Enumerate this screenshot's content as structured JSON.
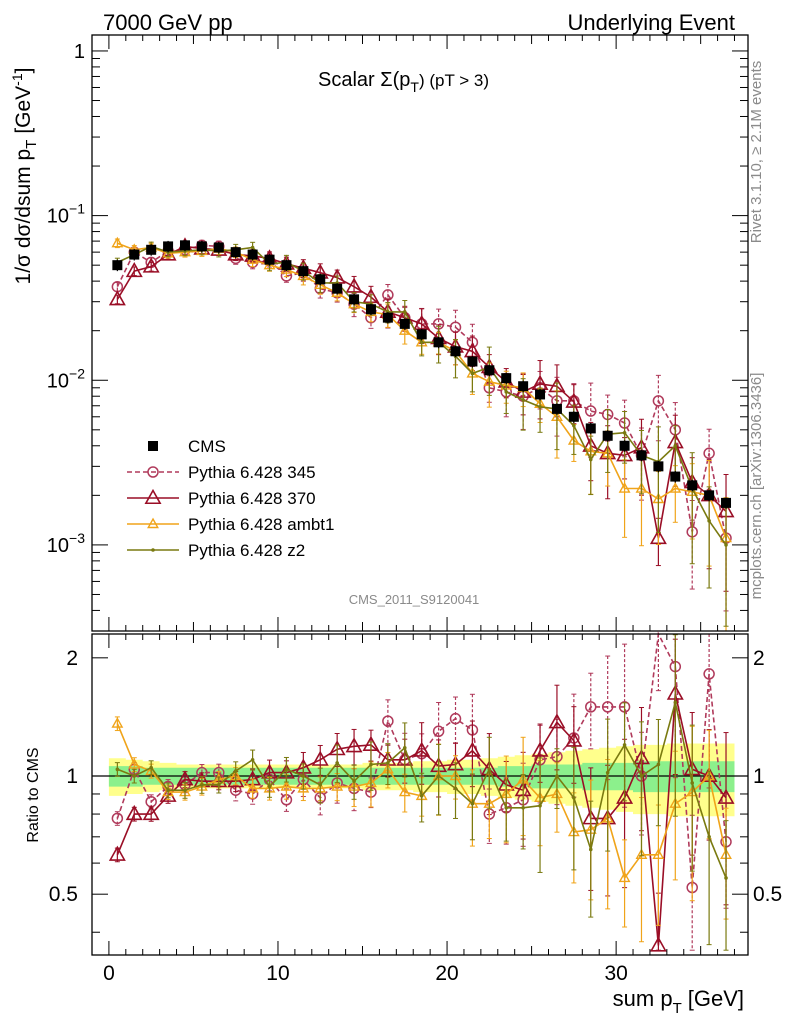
{
  "header": {
    "left": "7000 GeV pp",
    "right": "Underlying Event",
    "plot_title": "Scalar Σ(p",
    "plot_title_sub": "T",
    "plot_title_end": ") (pT > 3)",
    "analysis_id": "CMS_2011_S9120041",
    "side_top": "Rivet 3.1.10, ≥ 2.1M events",
    "side_bottom": "mcplots.cern.ch [arXiv:1306.3436]"
  },
  "chart_data": [
    {
      "type": "scatter",
      "panel": "main",
      "ylabel": "1/σ dσ/dsum p",
      "ylabel_sub": "T",
      "ylabel_unit": "[GeV",
      "ylabel_unit_sup": "-1",
      "ylabel_end": "]",
      "yscale": "log",
      "xlim": [
        -1,
        37.8
      ],
      "ylim": [
        0.0003,
        1.25
      ],
      "y_ticks": [
        "1",
        "10^-1",
        "10^-2",
        "10^-3"
      ],
      "y_tick_values": [
        1,
        0.1,
        0.01,
        0.001
      ],
      "x": [
        0.5,
        1.5,
        2.5,
        3.5,
        4.5,
        5.5,
        6.5,
        7.5,
        8.5,
        9.5,
        10.5,
        11.5,
        12.5,
        13.5,
        14.5,
        15.5,
        16.5,
        17.5,
        18.5,
        19.5,
        20.5,
        21.5,
        22.5,
        23.5,
        24.5,
        25.5,
        26.5,
        27.5,
        28.5,
        29.5,
        30.5,
        31.5,
        32.5,
        33.5,
        34.5,
        35.5,
        36.5
      ],
      "series": [
        {
          "name": "CMS",
          "color": "#000000",
          "marker": "square",
          "values": [
            0.05,
            0.058,
            0.062,
            0.065,
            0.066,
            0.065,
            0.064,
            0.06,
            0.058,
            0.054,
            0.05,
            0.046,
            0.041,
            0.036,
            0.031,
            0.027,
            0.024,
            0.022,
            0.019,
            0.017,
            0.015,
            0.013,
            0.0115,
            0.0103,
            0.0092,
            0.0082,
            0.0067,
            0.006,
            0.0051,
            0.0046,
            0.004,
            0.0035,
            0.003,
            0.0026,
            0.0023,
            0.002,
            0.0018
          ]
        },
        {
          "name": "Pythia 6.428 345",
          "color": "#b03a5b",
          "marker": "open-circle",
          "dash": true,
          "values": [
            0.037,
            0.06,
            0.052,
            0.061,
            0.062,
            0.066,
            0.065,
            0.055,
            0.052,
            0.053,
            0.043,
            0.045,
            0.036,
            0.034,
            0.029,
            0.024,
            0.033,
            0.024,
            0.022,
            0.022,
            0.021,
            0.017,
            0.009,
            0.0085,
            0.008,
            0.009,
            0.0075,
            0.0075,
            0.0065,
            0.0062,
            0.0055,
            0.0035,
            0.0075,
            0.005,
            0.0012,
            0.0036,
            0.0011
          ]
        },
        {
          "name": "Pythia 6.428 370",
          "color": "#9a0e26",
          "marker": "open-triangle",
          "values": [
            0.031,
            0.046,
            0.049,
            0.058,
            0.065,
            0.063,
            0.062,
            0.058,
            0.057,
            0.055,
            0.051,
            0.048,
            0.045,
            0.042,
            0.037,
            0.032,
            0.026,
            0.024,
            0.022,
            0.018,
            0.016,
            0.015,
            0.012,
            0.0098,
            0.0085,
            0.0095,
            0.0092,
            0.0074,
            0.004,
            0.0036,
            0.0035,
            0.0039,
            0.0011,
            0.0042,
            0.0024,
            0.002,
            0.0016
          ]
        },
        {
          "name": "Pythia 6.428 ambt1",
          "color": "#f0a41a",
          "marker": "open-triangle-small",
          "values": [
            0.068,
            0.062,
            0.064,
            0.059,
            0.06,
            0.061,
            0.063,
            0.06,
            0.054,
            0.05,
            0.047,
            0.043,
            0.038,
            0.034,
            0.029,
            0.026,
            0.025,
            0.02,
            0.017,
            0.017,
            0.015,
            0.011,
            0.0098,
            0.0093,
            0.009,
            0.0072,
            0.006,
            0.0043,
            0.0037,
            0.0036,
            0.0022,
            0.0022,
            0.0019,
            0.0022,
            0.0021,
            0.002,
            0.0011
          ]
        },
        {
          "name": "Pythia 6.428 z2",
          "color": "#7a7a10",
          "marker": "dot",
          "values": [
            0.052,
            0.058,
            0.065,
            0.06,
            0.061,
            0.062,
            0.061,
            0.062,
            0.064,
            0.051,
            0.052,
            0.046,
            0.039,
            0.039,
            0.03,
            0.029,
            0.026,
            0.026,
            0.017,
            0.017,
            0.014,
            0.011,
            0.012,
            0.0085,
            0.0076,
            0.0069,
            0.0067,
            0.0053,
            0.0033,
            0.0047,
            0.0048,
            0.0035,
            0.0032,
            0.004,
            0.0022,
            0.0014,
            0.001
          ]
        }
      ]
    },
    {
      "type": "line",
      "panel": "ratio",
      "xlabel": "sum p",
      "xlabel_sub": "T",
      "xlabel_unit": "[GeV]",
      "ylabel": "Ratio to CMS",
      "xlim": [
        -1,
        37.8
      ],
      "ylim": [
        0.35,
        2.3
      ],
      "y_ticks": [
        "0.5",
        "1",
        "2"
      ],
      "y_tick_values": [
        0.5,
        1,
        2
      ],
      "x_ticks": [
        "0",
        "10",
        "20",
        "30"
      ],
      "x_tick_values": [
        0,
        10,
        20,
        30
      ],
      "x": [
        0.5,
        1.5,
        2.5,
        3.5,
        4.5,
        5.5,
        6.5,
        7.5,
        8.5,
        9.5,
        10.5,
        11.5,
        12.5,
        13.5,
        14.5,
        15.5,
        16.5,
        17.5,
        18.5,
        19.5,
        20.5,
        21.5,
        22.5,
        23.5,
        24.5,
        25.5,
        26.5,
        27.5,
        28.5,
        29.5,
        30.5,
        31.5,
        32.5,
        33.5,
        34.5,
        35.5,
        36.5
      ],
      "band_inner": [
        0.06,
        0.06,
        0.05,
        0.05,
        0.05,
        0.05,
        0.05,
        0.05,
        0.05,
        0.05,
        0.05,
        0.05,
        0.05,
        0.05,
        0.05,
        0.05,
        0.05,
        0.05,
        0.05,
        0.05,
        0.05,
        0.05,
        0.05,
        0.06,
        0.06,
        0.07,
        0.07,
        0.07,
        0.08,
        0.08,
        0.08,
        0.09,
        0.09,
        0.09,
        0.09,
        0.09,
        0.09
      ],
      "band_outer": [
        0.11,
        0.1,
        0.09,
        0.08,
        0.07,
        0.07,
        0.07,
        0.07,
        0.07,
        0.07,
        0.07,
        0.07,
        0.07,
        0.07,
        0.07,
        0.08,
        0.08,
        0.08,
        0.09,
        0.09,
        0.1,
        0.1,
        0.11,
        0.12,
        0.13,
        0.14,
        0.15,
        0.16,
        0.17,
        0.18,
        0.19,
        0.2,
        0.2,
        0.21,
        0.21,
        0.21,
        0.21
      ],
      "series": [
        {
          "name": "Pythia 6.428 345",
          "color": "#b03a5b",
          "marker": "open-circle",
          "dash": true,
          "values": [
            0.78,
            1.04,
            0.86,
            0.94,
            0.95,
            1.02,
            1.02,
            0.92,
            0.9,
            0.98,
            0.87,
            0.98,
            0.88,
            0.96,
            0.93,
            0.91,
            1.38,
            1.1,
            1.14,
            1.3,
            1.4,
            1.31,
            0.8,
            0.83,
            0.87,
            1.1,
            1.12,
            1.25,
            1.5,
            1.5,
            1.5,
            1.0,
            2.4,
            1.9,
            0.52,
            1.82,
            0.68
          ]
        },
        {
          "name": "Pythia 6.428 370",
          "color": "#9a0e26",
          "marker": "open-triangle",
          "values": [
            0.63,
            0.8,
            0.8,
            0.89,
            0.98,
            0.97,
            0.97,
            0.97,
            0.98,
            1.02,
            1.02,
            1.05,
            1.1,
            1.17,
            1.19,
            1.2,
            1.1,
            1.1,
            1.16,
            1.06,
            1.07,
            1.16,
            1.04,
            0.95,
            0.92,
            1.16,
            1.37,
            1.23,
            0.78,
            0.78,
            0.88,
            1.11,
            0.37,
            1.62,
            1.04,
            1.0,
            0.88
          ]
        },
        {
          "name": "Pythia 6.428 ambt1",
          "color": "#f0a41a",
          "marker": "open-triangle-small",
          "values": [
            1.36,
            1.07,
            1.03,
            0.91,
            0.91,
            0.94,
            0.98,
            1.0,
            0.93,
            0.93,
            0.94,
            0.93,
            0.93,
            0.94,
            0.94,
            0.96,
            1.04,
            0.91,
            0.89,
            1.0,
            1.0,
            0.85,
            0.85,
            0.9,
            0.98,
            0.88,
            0.9,
            0.72,
            0.73,
            0.78,
            0.55,
            0.63,
            0.63,
            0.85,
            0.91,
            1.0,
            0.63
          ]
        },
        {
          "name": "Pythia 6.428 z2",
          "color": "#7a7a10",
          "marker": "dot",
          "values": [
            1.04,
            1.0,
            1.05,
            0.92,
            0.92,
            0.95,
            0.95,
            1.03,
            1.1,
            0.94,
            1.04,
            1.0,
            0.95,
            1.08,
            0.97,
            1.07,
            1.08,
            1.18,
            0.89,
            1.0,
            0.93,
            0.85,
            1.04,
            0.83,
            0.83,
            0.84,
            1.0,
            0.88,
            0.65,
            1.02,
            1.2,
            1.0,
            1.07,
            1.54,
            0.96,
            0.7,
            0.55
          ]
        }
      ]
    }
  ]
}
